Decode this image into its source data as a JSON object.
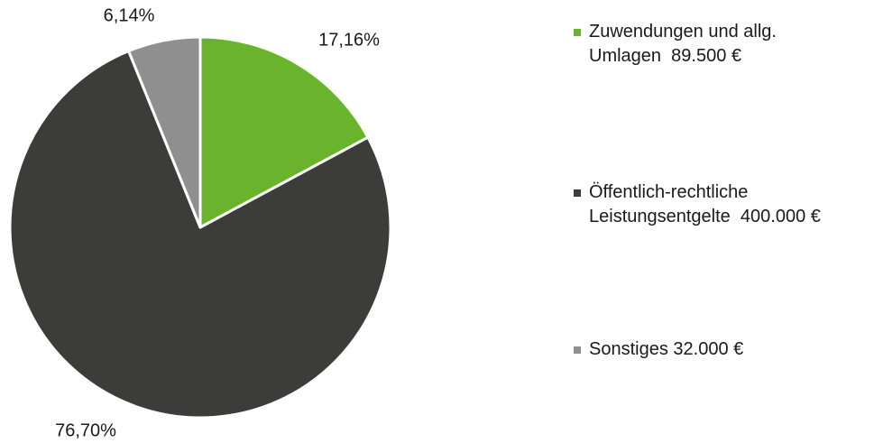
{
  "chart_data": {
    "type": "pie",
    "categories": [
      "Zuwendungen und allg.\nUmlagen  89.500 €",
      "Öffentlich-rechtliche\nLeistungsentgelte  400.000 €",
      "Sonstiges 32.000 €"
    ],
    "values": [
      17.16,
      76.7,
      6.14
    ],
    "value_labels": [
      "17,16%",
      "76,70%",
      "6,14%"
    ],
    "colors": [
      "#6ab42d",
      "#3c3c3b",
      "#8f8f8f"
    ]
  }
}
